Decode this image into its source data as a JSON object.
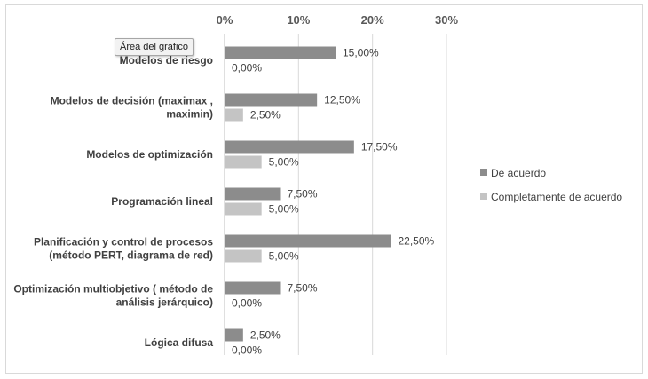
{
  "tooltip": "Área del gráfico",
  "chart_data": {
    "type": "bar",
    "orientation": "horizontal",
    "categories": [
      [
        "Modelos de riesgo"
      ],
      [
        "Modelos de decisión (maximax ,",
        "maximin)"
      ],
      [
        "Modelos de optimización"
      ],
      [
        "Programación lineal"
      ],
      [
        "Planificación y control de procesos",
        "(método PERT, diagrama de red)"
      ],
      [
        "Optimización multiobjetivo ( método de",
        "análisis jerárquico)"
      ],
      [
        "Lógica difusa"
      ]
    ],
    "series": [
      {
        "name": "De acuerdo",
        "color": "#8c8c8c",
        "values": [
          15,
          12.5,
          17.5,
          7.5,
          22.5,
          7.5,
          2.5
        ],
        "labels": [
          "15,00%",
          "12,50%",
          "17,50%",
          "7,50%",
          "22,50%",
          "7,50%",
          "2,50%"
        ]
      },
      {
        "name": "Completamente de acuerdo",
        "color": "#c4c4c4",
        "values": [
          0,
          2.5,
          5,
          5,
          5,
          0,
          0
        ],
        "labels": [
          "0,00%",
          "2,50%",
          "5,00%",
          "5,00%",
          "5,00%",
          "0,00%",
          "0,00%"
        ]
      }
    ],
    "xlim": [
      0,
      30
    ],
    "xticks": [
      0,
      10,
      20,
      30
    ],
    "xtick_labels": [
      "0%",
      "10%",
      "20%",
      "30%"
    ],
    "axis_position": "top",
    "grid": true,
    "legend": "right"
  }
}
